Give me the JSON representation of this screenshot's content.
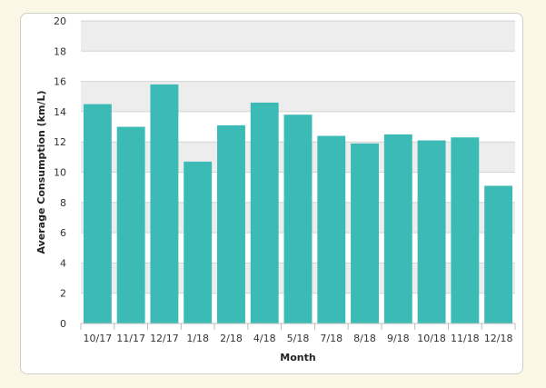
{
  "chart_data": {
    "type": "bar",
    "title": "",
    "xlabel": "Month",
    "ylabel": "Average Consumption (km/L)",
    "ylim": [
      0,
      20
    ],
    "yticks": [
      0,
      2,
      4,
      6,
      8,
      10,
      12,
      14,
      16,
      18,
      20
    ],
    "categories": [
      "10/17",
      "11/17",
      "12/17",
      "1/18",
      "2/18",
      "4/18",
      "5/18",
      "7/18",
      "8/18",
      "9/18",
      "10/18",
      "11/18",
      "12/18"
    ],
    "values": [
      14.5,
      13.0,
      15.8,
      10.7,
      13.1,
      14.6,
      13.8,
      12.4,
      11.9,
      12.5,
      12.1,
      12.3,
      9.1
    ],
    "bar_color": "#3cbab5",
    "band_color": "#ededed",
    "grid": true,
    "legend": "none"
  }
}
